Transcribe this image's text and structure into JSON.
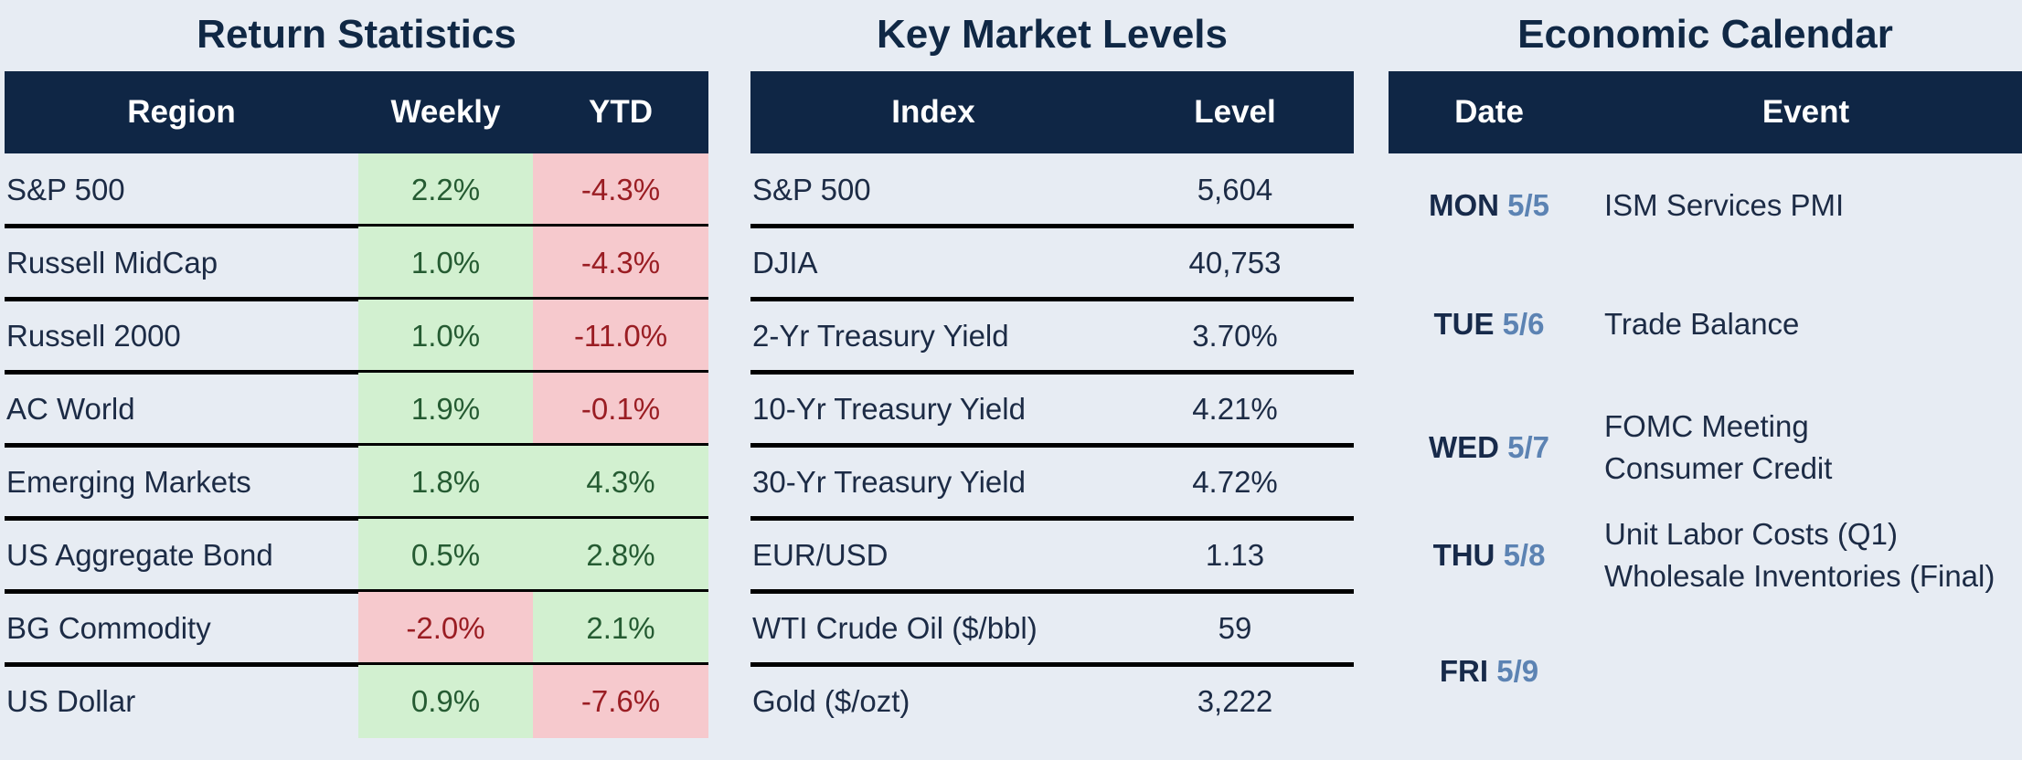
{
  "return_statistics": {
    "title": "Return Statistics",
    "headers": {
      "region": "Region",
      "weekly": "Weekly",
      "ytd": "YTD"
    },
    "rows": [
      {
        "region": "S&P 500",
        "weekly": "2.2%",
        "ytd": "-4.3%",
        "weekly_status": "positive",
        "ytd_status": "negative"
      },
      {
        "region": "Russell MidCap",
        "weekly": "1.0%",
        "ytd": "-4.3%",
        "weekly_status": "positive",
        "ytd_status": "negative"
      },
      {
        "region": "Russell 2000",
        "weekly": "1.0%",
        "ytd": "-11.0%",
        "weekly_status": "positive",
        "ytd_status": "negative"
      },
      {
        "region": "AC World",
        "weekly": "1.9%",
        "ytd": "-0.1%",
        "weekly_status": "positive",
        "ytd_status": "negative"
      },
      {
        "region": "Emerging Markets",
        "weekly": "1.8%",
        "ytd": "4.3%",
        "weekly_status": "positive",
        "ytd_status": "positive"
      },
      {
        "region": "US Aggregate Bond",
        "weekly": "0.5%",
        "ytd": "2.8%",
        "weekly_status": "positive",
        "ytd_status": "positive"
      },
      {
        "region": "BG Commodity",
        "weekly": "-2.0%",
        "ytd": "2.1%",
        "weekly_status": "negative",
        "ytd_status": "positive"
      },
      {
        "region": "US Dollar",
        "weekly": "0.9%",
        "ytd": "-7.6%",
        "weekly_status": "positive",
        "ytd_status": "negative"
      }
    ]
  },
  "key_market_levels": {
    "title": "Key Market Levels",
    "headers": {
      "index": "Index",
      "level": "Level"
    },
    "rows": [
      {
        "index": "S&P 500",
        "level": "5,604"
      },
      {
        "index": "DJIA",
        "level": "40,753"
      },
      {
        "index": "2-Yr Treasury Yield",
        "level": "3.70%"
      },
      {
        "index": "10-Yr Treasury Yield",
        "level": "4.21%"
      },
      {
        "index": "30-Yr Treasury Yield",
        "level": "4.72%"
      },
      {
        "index": "EUR/USD",
        "level": "1.13"
      },
      {
        "index": "WTI Crude Oil ($/bbl)",
        "level": "59"
      },
      {
        "index": "Gold ($/ozt)",
        "level": "3,222"
      }
    ]
  },
  "economic_calendar": {
    "title": "Economic Calendar",
    "headers": {
      "date": "Date",
      "event": "Event"
    },
    "days": [
      {
        "day": "MON",
        "date": "5/5",
        "events": [
          "ISM Services PMI"
        ]
      },
      {
        "day": "TUE",
        "date": "5/6",
        "events": [
          "Trade Balance"
        ]
      },
      {
        "day": "WED",
        "date": "5/7",
        "events": [
          "FOMC Meeting",
          "Consumer Credit"
        ]
      },
      {
        "day": "THU",
        "date": "5/8",
        "events": [
          "Unit Labor Costs (Q1)",
          "Wholesale Inventories (Final)"
        ]
      },
      {
        "day": "FRI",
        "date": "5/9",
        "events": []
      }
    ]
  },
  "colors": {
    "header_bg": "#0f2645",
    "positive_bg": "#d2f0d0",
    "negative_bg": "#f6c9cd",
    "negative_text": "#9a1d23",
    "date_accent": "#5c83b3",
    "page_bg": "#e7ecf3"
  }
}
